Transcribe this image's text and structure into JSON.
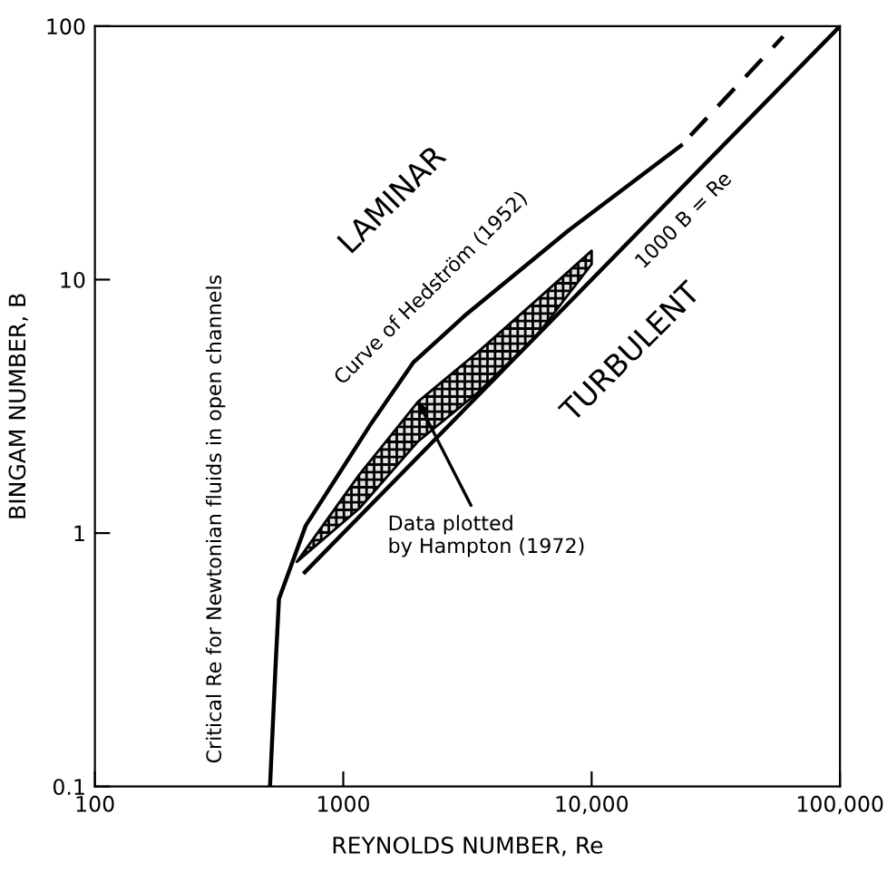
{
  "chart_data": {
    "type": "line",
    "xlabel": "REYNOLDS NUMBER, Re",
    "ylabel": "BINGAM NUMBER, B",
    "log": "xy",
    "xlim": [
      100,
      100000
    ],
    "ylim": [
      0.1,
      100
    ],
    "xticks": [
      100,
      1000,
      {
        "value": 10000,
        "label": "10,000"
      },
      {
        "value": 100000,
        "label": "100,000"
      }
    ],
    "yticks": [
      0.1,
      1,
      10,
      100
    ],
    "grid": false,
    "legend": false,
    "series": [
      {
        "color": "#000000",
        "line_style": "solid",
        "type": "line",
        "x": [
          507,
          533,
          551,
          706,
          1303,
          1910,
          3130,
          8050,
          22900
        ],
        "values": [
          0.1,
          0.29,
          0.55,
          1.07,
          2.73,
          4.7,
          7.3,
          15.6,
          33.8
        ]
      },
      {
        "color": "#000000",
        "line_style": "dashed",
        "x": [
          25000,
          59000
        ],
        "values": [
          37,
          91
        ]
      },
      {
        "color": "#000000",
        "line_style": "solid",
        "x": [
          700,
          100000
        ],
        "values": [
          0.7,
          100
        ]
      },
      {
        "type": "line",
        "color": "#000000",
        "x": [
          650,
          1160,
          2000,
          3500,
          6000,
          10000
        ],
        "values": [
          null,
          null,
          null,
          null,
          null,
          null
        ],
        "upper": [
          0.77,
          1.7,
          3.3,
          5.2,
          8.3,
          13
        ],
        "lower": [
          0.77,
          1.25,
          2.3,
          3.6,
          6.0,
          11.5
        ]
      }
    ],
    "annotations": [
      "LAMINAR",
      "TURBULENT",
      "Critical Re for Newtonian fluids in open channels",
      {
        "text": "Curve of Hedström (1952)",
        "x": 3000,
        "y": 7
      },
      {
        "text": "1000 B = Re",
        "x": 20000,
        "y": 20
      },
      {
        "text": "Data plotted\nby Hampton (1972)",
        "x": 2000,
        "y": 3.3
      }
    ]
  }
}
